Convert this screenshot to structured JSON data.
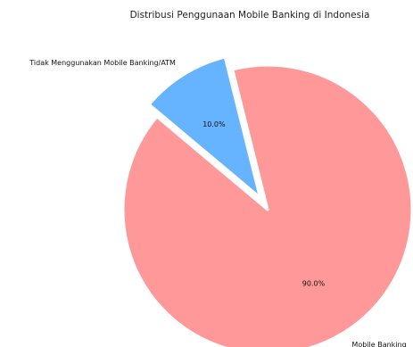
{
  "chart_data": {
    "type": "pie",
    "title": "Distribusi Penggunaan Mobile Banking di Indonesia",
    "slices": [
      {
        "label": "Mobile Banking",
        "value": 90.0,
        "pct_label": "90.0%",
        "color": "#ff9999",
        "explode": 0
      },
      {
        "label": "Tidak Menggunakan Mobile Banking/ATM",
        "value": 10.0,
        "pct_label": "10.0%",
        "color": "#66b3ff",
        "explode": 0.1
      }
    ],
    "start_angle_deg": 140,
    "legend": "none",
    "edge_color": "#ffffff"
  }
}
